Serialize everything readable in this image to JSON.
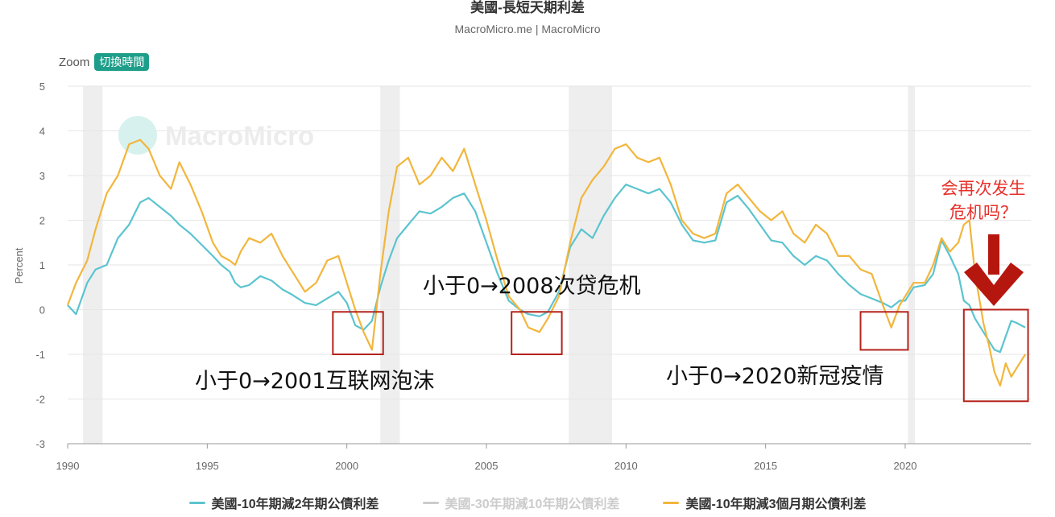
{
  "header": {
    "title": "美國-長短天期利差",
    "subtitle": "MacroMicro.me | MacroMicro"
  },
  "toolbar": {
    "zoom_label": "Zoom",
    "toggle_label": "切換時間"
  },
  "watermark": {
    "text": "MacroMicro"
  },
  "colors": {
    "series1": "#5bc4cf",
    "series2": "#c8c8c8",
    "series3": "#f2b63c",
    "highlight_box": "#b5231b",
    "arrow": "#b5170f",
    "question": "#e8302a",
    "recession": "#eeeeee"
  },
  "annotations": {
    "dotcom": "小于0→2001互联网泡沫",
    "subprime": "小于0→2008次贷危机",
    "covid": "小于0→2020新冠疫情",
    "question_line1": "会再次发生",
    "question_line2": "危机吗？"
  },
  "chart_data": {
    "type": "line",
    "title": "美國-長短天期利差",
    "xlabel": "",
    "ylabel": "Percent",
    "xlim": [
      1990,
      2024.5
    ],
    "ylim": [
      -3,
      5
    ],
    "x_ticks": [
      "1990",
      "1995",
      "2000",
      "2005",
      "2010",
      "2015",
      "2020"
    ],
    "y_ticks": [
      "5",
      "4",
      "3",
      "2",
      "1",
      "0",
      "-1",
      "-2",
      "-3"
    ],
    "grid": true,
    "legend_position": "bottom",
    "recessions": [
      [
        1990.55,
        1991.25
      ],
      [
        2001.2,
        2001.9
      ],
      [
        2007.95,
        2009.5
      ],
      [
        2020.1,
        2020.35
      ]
    ],
    "highlight_boxes": [
      {
        "x": [
          1999.5,
          2001.3
        ],
        "y": [
          -1.0,
          -0.05
        ]
      },
      {
        "x": [
          2005.9,
          2007.7
        ],
        "y": [
          -1.0,
          -0.05
        ]
      },
      {
        "x": [
          2018.4,
          2020.1
        ],
        "y": [
          -0.9,
          -0.05
        ]
      },
      {
        "x": [
          2022.1,
          2024.4
        ],
        "y": [
          -2.05,
          -0.0
        ]
      }
    ],
    "series": [
      {
        "name": "美國-10年期減2年期公債利差",
        "visible": true,
        "points": [
          [
            1990.0,
            0.1
          ],
          [
            1990.3,
            -0.1
          ],
          [
            1990.7,
            0.6
          ],
          [
            1991.0,
            0.9
          ],
          [
            1991.4,
            1.0
          ],
          [
            1991.8,
            1.6
          ],
          [
            1992.2,
            1.9
          ],
          [
            1992.6,
            2.4
          ],
          [
            1992.9,
            2.5
          ],
          [
            1993.3,
            2.3
          ],
          [
            1993.7,
            2.1
          ],
          [
            1994.0,
            1.9
          ],
          [
            1994.4,
            1.7
          ],
          [
            1994.8,
            1.45
          ],
          [
            1995.2,
            1.2
          ],
          [
            1995.5,
            1.0
          ],
          [
            1995.8,
            0.85
          ],
          [
            1996.0,
            0.6
          ],
          [
            1996.2,
            0.5
          ],
          [
            1996.5,
            0.55
          ],
          [
            1996.9,
            0.75
          ],
          [
            1997.3,
            0.65
          ],
          [
            1997.7,
            0.45
          ],
          [
            1998.0,
            0.35
          ],
          [
            1998.5,
            0.15
          ],
          [
            1998.9,
            0.1
          ],
          [
            1999.3,
            0.25
          ],
          [
            1999.7,
            0.4
          ],
          [
            2000.0,
            0.15
          ],
          [
            2000.3,
            -0.35
          ],
          [
            2000.6,
            -0.45
          ],
          [
            2000.9,
            -0.25
          ],
          [
            2001.2,
            0.5
          ],
          [
            2001.5,
            1.1
          ],
          [
            2001.8,
            1.6
          ],
          [
            2002.2,
            1.9
          ],
          [
            2002.6,
            2.2
          ],
          [
            2003.0,
            2.15
          ],
          [
            2003.4,
            2.3
          ],
          [
            2003.8,
            2.5
          ],
          [
            2004.2,
            2.6
          ],
          [
            2004.6,
            2.2
          ],
          [
            2005.0,
            1.5
          ],
          [
            2005.4,
            0.8
          ],
          [
            2005.8,
            0.2
          ],
          [
            2006.2,
            0.0
          ],
          [
            2006.5,
            -0.1
          ],
          [
            2006.9,
            -0.15
          ],
          [
            2007.2,
            -0.05
          ],
          [
            2007.6,
            0.4
          ],
          [
            2008.0,
            1.4
          ],
          [
            2008.4,
            1.8
          ],
          [
            2008.8,
            1.6
          ],
          [
            2009.2,
            2.1
          ],
          [
            2009.6,
            2.5
          ],
          [
            2010.0,
            2.8
          ],
          [
            2010.4,
            2.7
          ],
          [
            2010.8,
            2.6
          ],
          [
            2011.2,
            2.7
          ],
          [
            2011.6,
            2.4
          ],
          [
            2012.0,
            1.9
          ],
          [
            2012.4,
            1.55
          ],
          [
            2012.8,
            1.5
          ],
          [
            2013.2,
            1.55
          ],
          [
            2013.6,
            2.4
          ],
          [
            2014.0,
            2.55
          ],
          [
            2014.4,
            2.25
          ],
          [
            2014.8,
            1.9
          ],
          [
            2015.2,
            1.55
          ],
          [
            2015.6,
            1.5
          ],
          [
            2016.0,
            1.2
          ],
          [
            2016.4,
            1.0
          ],
          [
            2016.8,
            1.2
          ],
          [
            2017.2,
            1.1
          ],
          [
            2017.6,
            0.8
          ],
          [
            2018.0,
            0.55
          ],
          [
            2018.4,
            0.35
          ],
          [
            2018.8,
            0.25
          ],
          [
            2019.2,
            0.15
          ],
          [
            2019.5,
            0.05
          ],
          [
            2019.8,
            0.2
          ],
          [
            2020.0,
            0.2
          ],
          [
            2020.3,
            0.5
          ],
          [
            2020.7,
            0.55
          ],
          [
            2021.0,
            0.8
          ],
          [
            2021.3,
            1.55
          ],
          [
            2021.6,
            1.2
          ],
          [
            2021.9,
            0.8
          ],
          [
            2022.1,
            0.2
          ],
          [
            2022.3,
            0.1
          ],
          [
            2022.5,
            -0.2
          ],
          [
            2022.8,
            -0.5
          ],
          [
            2023.0,
            -0.7
          ],
          [
            2023.2,
            -0.9
          ],
          [
            2023.4,
            -0.95
          ],
          [
            2023.6,
            -0.6
          ],
          [
            2023.8,
            -0.25
          ],
          [
            2024.0,
            -0.3
          ],
          [
            2024.3,
            -0.4
          ]
        ]
      },
      {
        "name": "美國-30年期減10年期公債利差",
        "visible": false,
        "points": []
      },
      {
        "name": "美國-10年期減3個月期公債利差",
        "visible": true,
        "points": [
          [
            1990.0,
            0.1
          ],
          [
            1990.3,
            0.6
          ],
          [
            1990.7,
            1.1
          ],
          [
            1991.0,
            1.8
          ],
          [
            1991.4,
            2.6
          ],
          [
            1991.8,
            3.0
          ],
          [
            1992.2,
            3.7
          ],
          [
            1992.6,
            3.8
          ],
          [
            1992.9,
            3.6
          ],
          [
            1993.3,
            3.0
          ],
          [
            1993.7,
            2.7
          ],
          [
            1994.0,
            3.3
          ],
          [
            1994.4,
            2.8
          ],
          [
            1994.8,
            2.2
          ],
          [
            1995.2,
            1.5
          ],
          [
            1995.5,
            1.2
          ],
          [
            1995.8,
            1.1
          ],
          [
            1996.0,
            1.0
          ],
          [
            1996.2,
            1.3
          ],
          [
            1996.5,
            1.6
          ],
          [
            1996.9,
            1.5
          ],
          [
            1997.3,
            1.7
          ],
          [
            1997.7,
            1.2
          ],
          [
            1998.0,
            0.9
          ],
          [
            1998.5,
            0.4
          ],
          [
            1998.9,
            0.6
          ],
          [
            1999.3,
            1.1
          ],
          [
            1999.7,
            1.2
          ],
          [
            2000.0,
            0.6
          ],
          [
            2000.3,
            0.0
          ],
          [
            2000.6,
            -0.5
          ],
          [
            2000.9,
            -0.9
          ],
          [
            2001.2,
            0.8
          ],
          [
            2001.5,
            2.2
          ],
          [
            2001.8,
            3.2
          ],
          [
            2002.2,
            3.4
          ],
          [
            2002.6,
            2.8
          ],
          [
            2003.0,
            3.0
          ],
          [
            2003.4,
            3.4
          ],
          [
            2003.8,
            3.1
          ],
          [
            2004.2,
            3.6
          ],
          [
            2004.6,
            2.8
          ],
          [
            2005.0,
            2.0
          ],
          [
            2005.4,
            1.1
          ],
          [
            2005.8,
            0.3
          ],
          [
            2006.2,
            0.0
          ],
          [
            2006.5,
            -0.4
          ],
          [
            2006.9,
            -0.5
          ],
          [
            2007.2,
            -0.2
          ],
          [
            2007.6,
            0.3
          ],
          [
            2008.0,
            1.5
          ],
          [
            2008.4,
            2.5
          ],
          [
            2008.8,
            2.9
          ],
          [
            2009.2,
            3.2
          ],
          [
            2009.6,
            3.6
          ],
          [
            2010.0,
            3.7
          ],
          [
            2010.4,
            3.4
          ],
          [
            2010.8,
            3.3
          ],
          [
            2011.2,
            3.4
          ],
          [
            2011.6,
            2.8
          ],
          [
            2012.0,
            2.0
          ],
          [
            2012.4,
            1.7
          ],
          [
            2012.8,
            1.6
          ],
          [
            2013.2,
            1.7
          ],
          [
            2013.6,
            2.6
          ],
          [
            2014.0,
            2.8
          ],
          [
            2014.4,
            2.5
          ],
          [
            2014.8,
            2.2
          ],
          [
            2015.2,
            2.0
          ],
          [
            2015.6,
            2.2
          ],
          [
            2016.0,
            1.7
          ],
          [
            2016.4,
            1.5
          ],
          [
            2016.8,
            1.9
          ],
          [
            2017.2,
            1.7
          ],
          [
            2017.6,
            1.2
          ],
          [
            2018.0,
            1.2
          ],
          [
            2018.4,
            0.9
          ],
          [
            2018.8,
            0.8
          ],
          [
            2019.2,
            0.1
          ],
          [
            2019.5,
            -0.4
          ],
          [
            2019.8,
            0.1
          ],
          [
            2020.0,
            0.3
          ],
          [
            2020.3,
            0.6
          ],
          [
            2020.7,
            0.6
          ],
          [
            2021.0,
            1.0
          ],
          [
            2021.3,
            1.6
          ],
          [
            2021.6,
            1.3
          ],
          [
            2021.9,
            1.5
          ],
          [
            2022.1,
            1.9
          ],
          [
            2022.3,
            2.0
          ],
          [
            2022.5,
            0.8
          ],
          [
            2022.8,
            -0.3
          ],
          [
            2023.0,
            -0.8
          ],
          [
            2023.2,
            -1.4
          ],
          [
            2023.4,
            -1.7
          ],
          [
            2023.6,
            -1.2
          ],
          [
            2023.8,
            -1.5
          ],
          [
            2024.0,
            -1.3
          ],
          [
            2024.3,
            -1.0
          ]
        ]
      }
    ]
  }
}
